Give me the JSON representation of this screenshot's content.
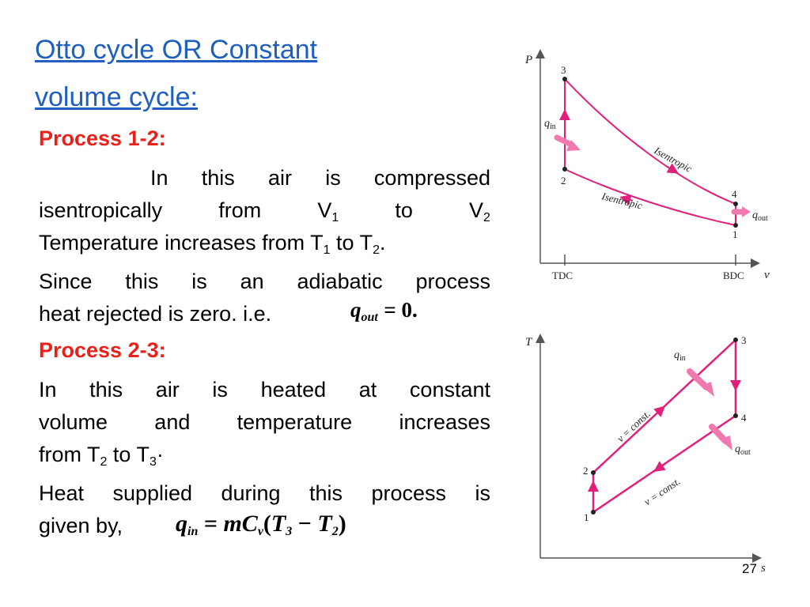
{
  "title": {
    "line1": "Otto cycle OR Constant",
    "line2": "volume cycle:"
  },
  "process12": {
    "heading": "Process 1-2:",
    "text1": "In this air is compressed",
    "text2a": "isentropically",
    "text2b": "from",
    "text2c": "V",
    "text2c_sub": "1",
    "text2d": "to",
    "text2e": "V",
    "text2e_sub": "2",
    "text3a": "Temperature increases from T",
    "text3a_sub": "1",
    "text3b": " to T",
    "text3b_sub": "2",
    "text3c": ".",
    "text4": "Since this is an adiabatic process",
    "text5": "heat rejected is zero. i.e.",
    "eq_lhs": "q",
    "eq_lhs_sub": "out",
    "eq_rhs": "= 0."
  },
  "process23": {
    "heading": "Process 2-3:",
    "text1": "In this air is heated at constant",
    "text2": "volume and temperature increases",
    "text3a": "from T",
    "text3a_sub": "2",
    "text3b": " to T",
    "text3b_sub": "3",
    "text3c": "·",
    "text4": "Heat supplied during this process is",
    "text5": "given by,",
    "eq": {
      "q": "q",
      "q_sub": "in",
      "eqs": " = ",
      "m": "mC",
      "m_sub": "v",
      "open": "(",
      "t3": "T",
      "t3_sub": "3",
      "minus": " − ",
      "t2": "T",
      "t2_sub": "2",
      "close": ")"
    }
  },
  "pv_diagram": {
    "axis_y": "P",
    "axis_x": "v",
    "tdc": "TDC",
    "bdc": "BDC",
    "points": [
      "1",
      "2",
      "3",
      "4"
    ],
    "q_in": "q",
    "q_in_sub": "in",
    "q_out": "q",
    "q_out_sub": "out",
    "curve_upper": "Isentropic",
    "curve_lower": "Isentropic"
  },
  "ts_diagram": {
    "axis_y": "T",
    "axis_x": "s",
    "points": [
      "1",
      "2",
      "3",
      "4"
    ],
    "q_in": "q",
    "q_in_sub": "in",
    "q_out": "q",
    "q_out_sub": "out",
    "line_upper": "v = const.",
    "line_lower": "v = const."
  },
  "colors": {
    "title": "#1f5fbf",
    "heading": "#e8221a",
    "curve": "#e0207a",
    "arrow": "#f07ab0"
  },
  "slide_number": "27"
}
